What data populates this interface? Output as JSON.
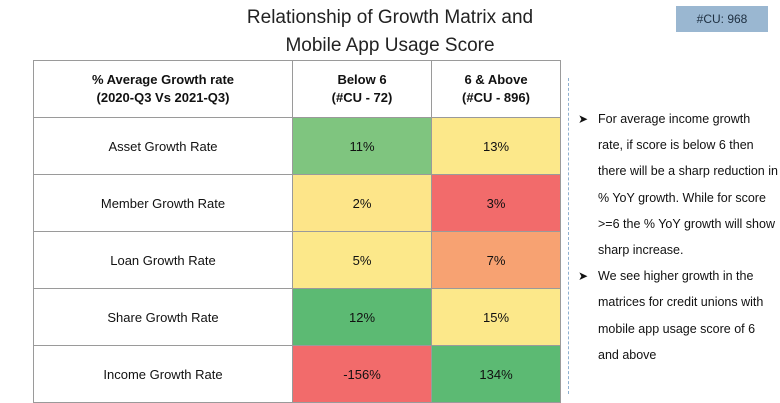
{
  "title": {
    "line1": "Relationship of Growth Matrix and",
    "line2": "Mobile App Usage Score"
  },
  "badge": "#CU: 968",
  "table": {
    "header": {
      "metric_line1": "% Average Growth rate",
      "metric_line2": "(2020-Q3 Vs 2021-Q3)",
      "col1_line1": "Below 6",
      "col1_line2": "(#CU - 72)",
      "col2_line1": "6 & Above",
      "col2_line2": "(#CU - 896)"
    },
    "rows": [
      {
        "label": "Asset Growth Rate",
        "below6": "11%",
        "above6": "13%",
        "below6_color": "#7fc57f",
        "above6_color": "#fce88a"
      },
      {
        "label": "Member Growth Rate",
        "below6": "2%",
        "above6": "3%",
        "below6_color": "#fde589",
        "above6_color": "#f26b6b"
      },
      {
        "label": "Loan Growth Rate",
        "below6": "5%",
        "above6": "7%",
        "below6_color": "#fce88a",
        "above6_color": "#f7a272"
      },
      {
        "label": "Share Growth Rate",
        "below6": "12%",
        "above6": "15%",
        "below6_color": "#5cba73",
        "above6_color": "#fce88a"
      },
      {
        "label": "Income Growth Rate",
        "below6": "-156%",
        "above6": "134%",
        "below6_color": "#f26b6b",
        "above6_color": "#5cba73"
      }
    ]
  },
  "notes": [
    "For average income growth rate, if score is below 6 then there will be a sharp reduction in % YoY growth. While for score >=6 the % YoY growth will show sharp increase.",
    "We see higher growth in the matrices for credit unions with mobile app usage score of 6 and above"
  ],
  "bullet_icon": "arrowhead-bullet-icon"
}
